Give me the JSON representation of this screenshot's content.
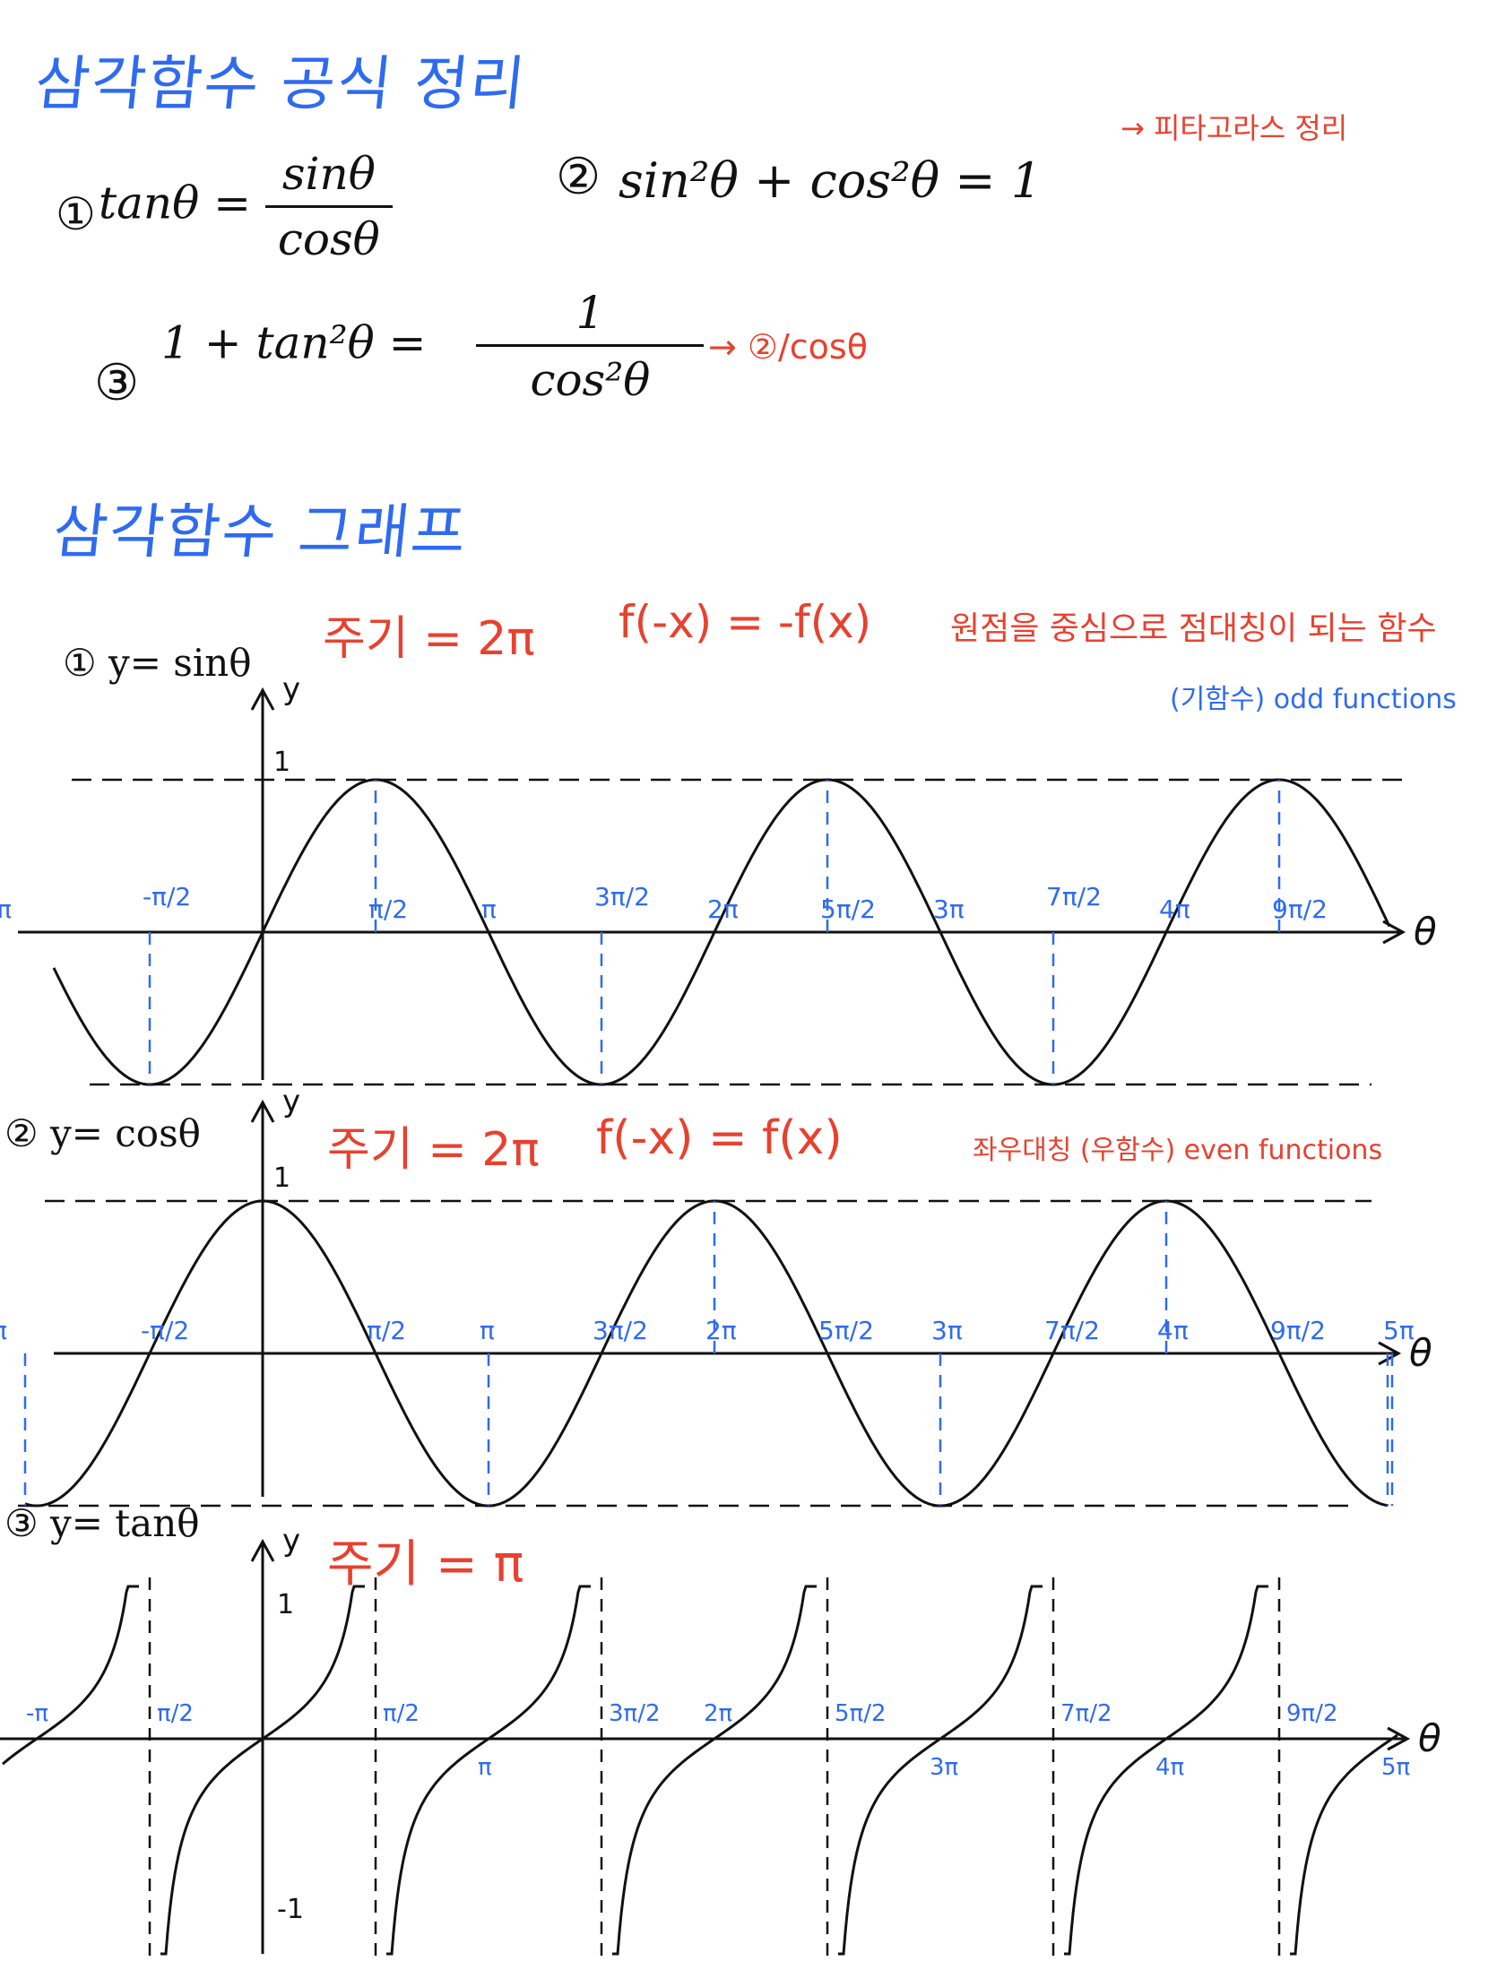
{
  "title_formulas": "삼각함수 공식 정리",
  "formulas": {
    "f1": {
      "number": "①",
      "lhs": "tanθ =",
      "num": "sinθ",
      "den": "cosθ"
    },
    "f2": {
      "number": "②",
      "text": "sin²θ + cos²θ = 1",
      "note": "→ 피타고라스 정리"
    },
    "f3": {
      "number": "③",
      "lhs": "1 + tan²θ =",
      "num": "1",
      "den": "cos²θ",
      "note": "→ ②/cosθ"
    }
  },
  "title_graphs": "삼각함수 그래프",
  "graph_sin": {
    "header": "① y= sinθ",
    "period": "주기 = 2π",
    "symmetry": "f(-x) = -f(x)",
    "symmetry_note": "원점을 중심으로 점대칭이 되는 함수",
    "type_note": "(기함수) odd functions",
    "axis_y": "y",
    "axis_x": "θ",
    "one": "1",
    "ticks": [
      "-π",
      "-π/2",
      "π/2",
      "π",
      "3π/2",
      "2π",
      "5π/2",
      "3π",
      "7π/2",
      "4π",
      "9π/2"
    ]
  },
  "graph_cos": {
    "header": "② y= cosθ",
    "period": "주기 = 2π",
    "symmetry": "f(-x) = f(x)",
    "symmetry_note": "좌우대칭 (우함수) even functions",
    "axis_y": "y",
    "axis_x": "θ",
    "one": "1",
    "ticks": [
      "-π",
      "-π/2",
      "π/2",
      "π",
      "3π/2",
      "2π",
      "5π/2",
      "3π",
      "7π/2",
      "4π",
      "9π/2",
      "5π"
    ]
  },
  "graph_tan": {
    "header": "③ y= tanθ",
    "period": "주기 = π",
    "axis_y": "y",
    "axis_x": "θ",
    "one": "1",
    "minus_one": "-1",
    "ticks": [
      "-π",
      "π/2",
      "π/2",
      "π",
      "3π/2",
      "2π",
      "5π/2",
      "3π",
      "7π/2",
      "4π",
      "9π/2",
      "5π"
    ]
  },
  "colors": {
    "blue": "#2f6bf0",
    "red": "#e8412f",
    "ink": "#111111"
  }
}
